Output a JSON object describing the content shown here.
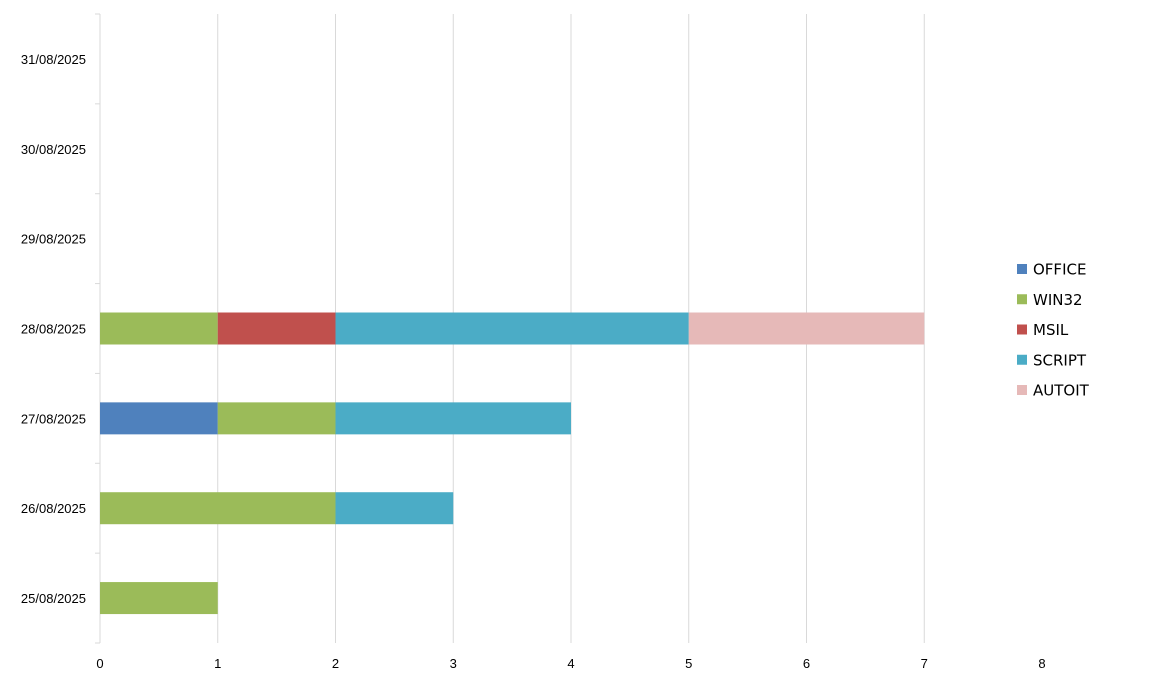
{
  "chart_data": {
    "type": "bar",
    "orientation": "horizontal",
    "stacked": true,
    "categories": [
      "25/08/2025",
      "26/08/2025",
      "27/08/2025",
      "28/08/2025",
      "29/08/2025",
      "30/08/2025",
      "31/08/2025"
    ],
    "series": [
      {
        "name": "OFFICE",
        "color": "#4F81BD",
        "values": [
          0,
          0,
          1,
          0,
          0,
          0,
          0
        ]
      },
      {
        "name": "WIN32",
        "color": "#9BBB59",
        "values": [
          1,
          2,
          1,
          1,
          0,
          0,
          0
        ]
      },
      {
        "name": "MSIL",
        "color": "#C0504D",
        "values": [
          0,
          0,
          0,
          1,
          0,
          0,
          0
        ]
      },
      {
        "name": "SCRIPT",
        "color": "#4BACC6",
        "values": [
          0,
          1,
          2,
          3,
          0,
          0,
          0
        ]
      },
      {
        "name": "AUTOIT",
        "color": "#E6B9B8",
        "values": [
          0,
          0,
          0,
          2,
          0,
          0,
          0
        ]
      }
    ],
    "xlim": [
      0,
      8
    ],
    "x_ticks": [
      "0",
      "1",
      "2",
      "3",
      "4",
      "5",
      "6",
      "7",
      "8"
    ],
    "grid": true,
    "legend_position": "right",
    "title": "",
    "xlabel": "",
    "ylabel": ""
  }
}
